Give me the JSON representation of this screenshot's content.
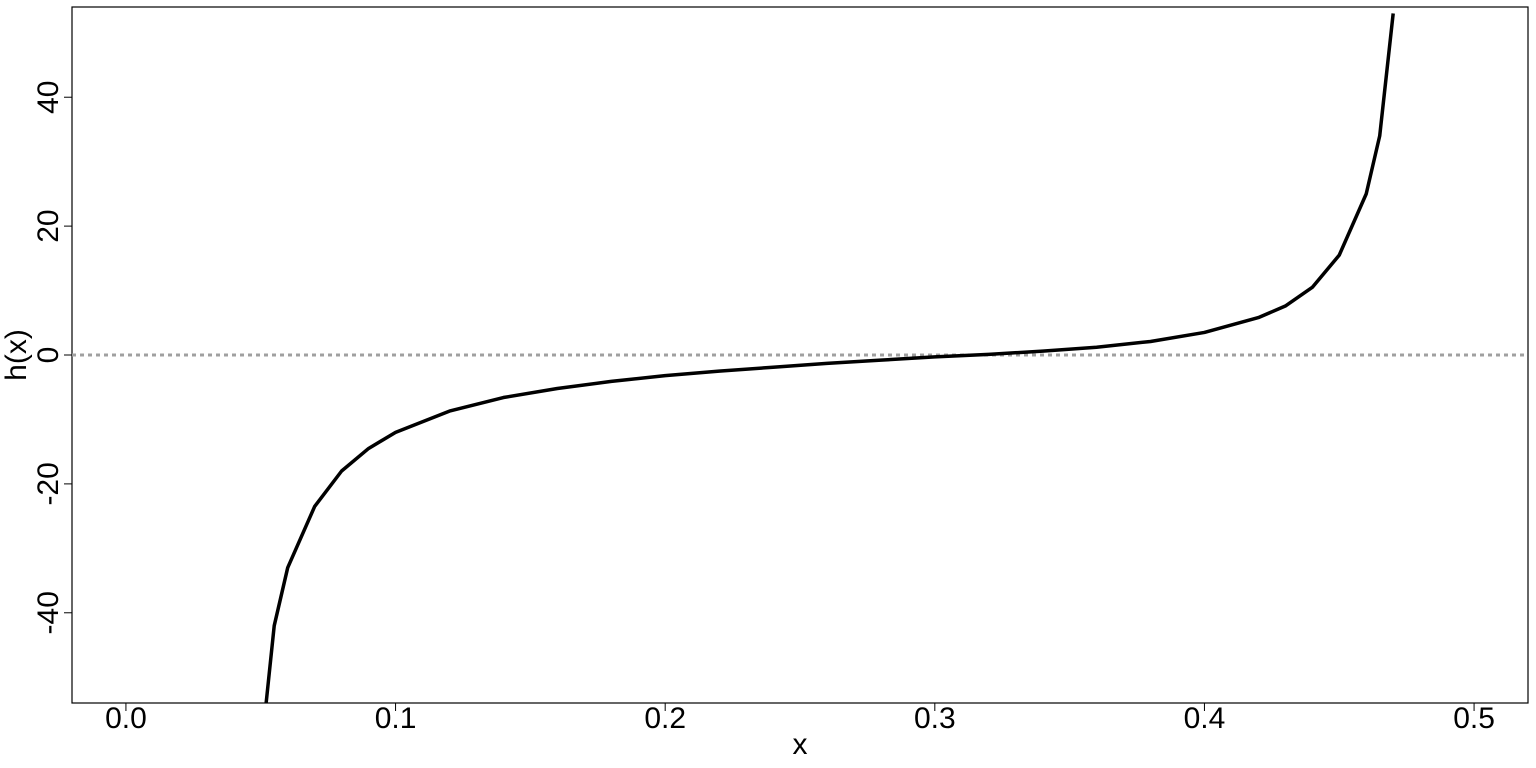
{
  "chart_data": {
    "type": "line",
    "x_label": "x",
    "y_label": "h(x)",
    "x": [
      0.052,
      0.055,
      0.06,
      0.07,
      0.08,
      0.09,
      0.1,
      0.12,
      0.14,
      0.16,
      0.18,
      0.2,
      0.22,
      0.24,
      0.26,
      0.28,
      0.3,
      0.32,
      0.34,
      0.36,
      0.38,
      0.4,
      0.42,
      0.43,
      0.44,
      0.45,
      0.46,
      0.465,
      0.47
    ],
    "values": [
      -54,
      -42,
      -33,
      -23.5,
      -18,
      -14.5,
      -12,
      -8.7,
      -6.6,
      -5.2,
      -4.1,
      -3.2,
      -2.5,
      -1.9,
      -1.3,
      -0.8,
      -0.3,
      0.1,
      0.6,
      1.2,
      2.1,
      3.5,
      5.8,
      7.6,
      10.5,
      15.5,
      25,
      34,
      53
    ],
    "color": "#000000",
    "hline": 0,
    "hline_color": "#a0a0a0",
    "xlim": [
      -0.02,
      0.52
    ],
    "xticks": [
      {
        "value": 0,
        "label": "0.0"
      },
      0.1,
      0.2,
      0.3,
      0.4,
      0.5
    ],
    "ylim": [
      -54,
      54
    ],
    "yticks": [
      -40,
      -20,
      0,
      20,
      40
    ]
  }
}
